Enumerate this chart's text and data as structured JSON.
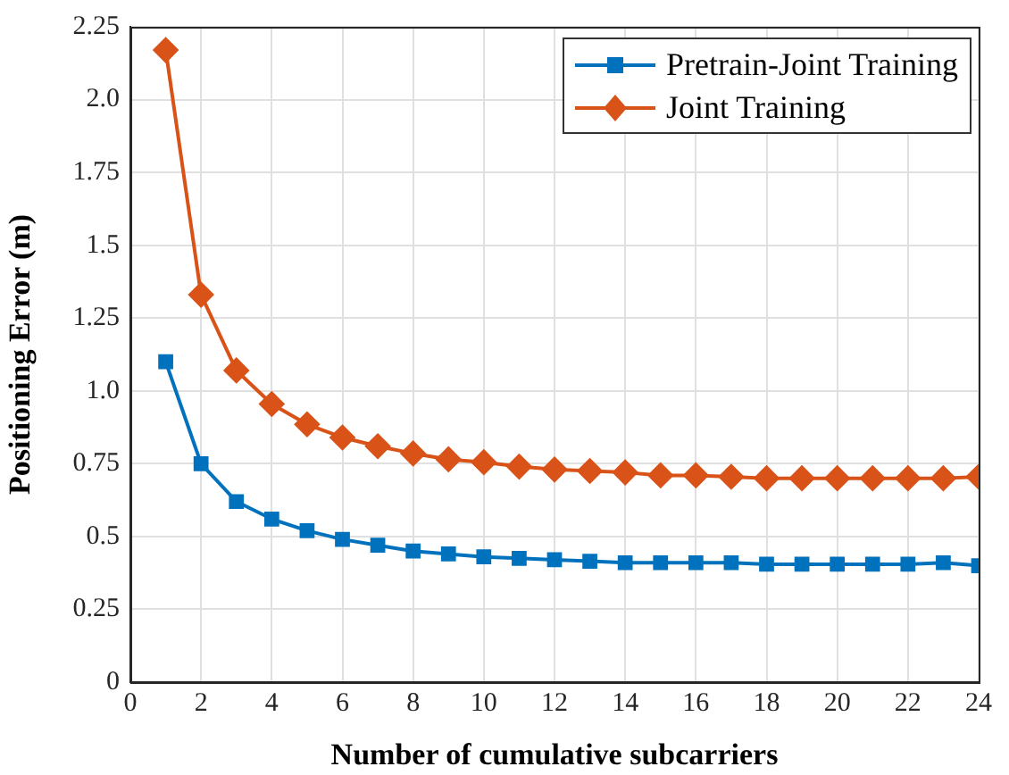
{
  "chart_data": {
    "type": "line",
    "xlabel": "Number of cumulative subcarriers",
    "ylabel": "Positioning Error (m)",
    "x": [
      1,
      2,
      3,
      4,
      5,
      6,
      7,
      8,
      9,
      10,
      11,
      12,
      13,
      14,
      15,
      16,
      17,
      18,
      19,
      20,
      21,
      22,
      23,
      24
    ],
    "series": [
      {
        "name": "Pretrain-Joint Training",
        "color": "#0072bd",
        "marker": "square",
        "values": [
          1.1,
          0.75,
          0.62,
          0.56,
          0.52,
          0.49,
          0.47,
          0.45,
          0.44,
          0.43,
          0.425,
          0.42,
          0.415,
          0.41,
          0.41,
          0.41,
          0.41,
          0.405,
          0.405,
          0.405,
          0.405,
          0.405,
          0.41,
          0.4
        ]
      },
      {
        "name": "Joint Training",
        "color": "#d95319",
        "marker": "diamond",
        "values": [
          2.17,
          1.33,
          1.07,
          0.955,
          0.885,
          0.84,
          0.81,
          0.785,
          0.765,
          0.755,
          0.74,
          0.73,
          0.725,
          0.72,
          0.71,
          0.71,
          0.705,
          0.7,
          0.7,
          0.7,
          0.7,
          0.7,
          0.7,
          0.705
        ]
      }
    ],
    "xlim": [
      0,
      24
    ],
    "xticks": [
      0,
      2,
      4,
      6,
      8,
      10,
      12,
      14,
      16,
      18,
      20,
      22,
      24
    ],
    "ylim": [
      0,
      2.25
    ],
    "yticks": [
      0,
      0.25,
      0.5,
      0.75,
      {
        "value": 1,
        "label": "1.0"
      },
      1.25,
      1.5,
      1.75,
      {
        "value": 2,
        "label": "2.0"
      },
      2.25
    ],
    "grid": true,
    "legend": "top right",
    "line_style": "solid"
  }
}
